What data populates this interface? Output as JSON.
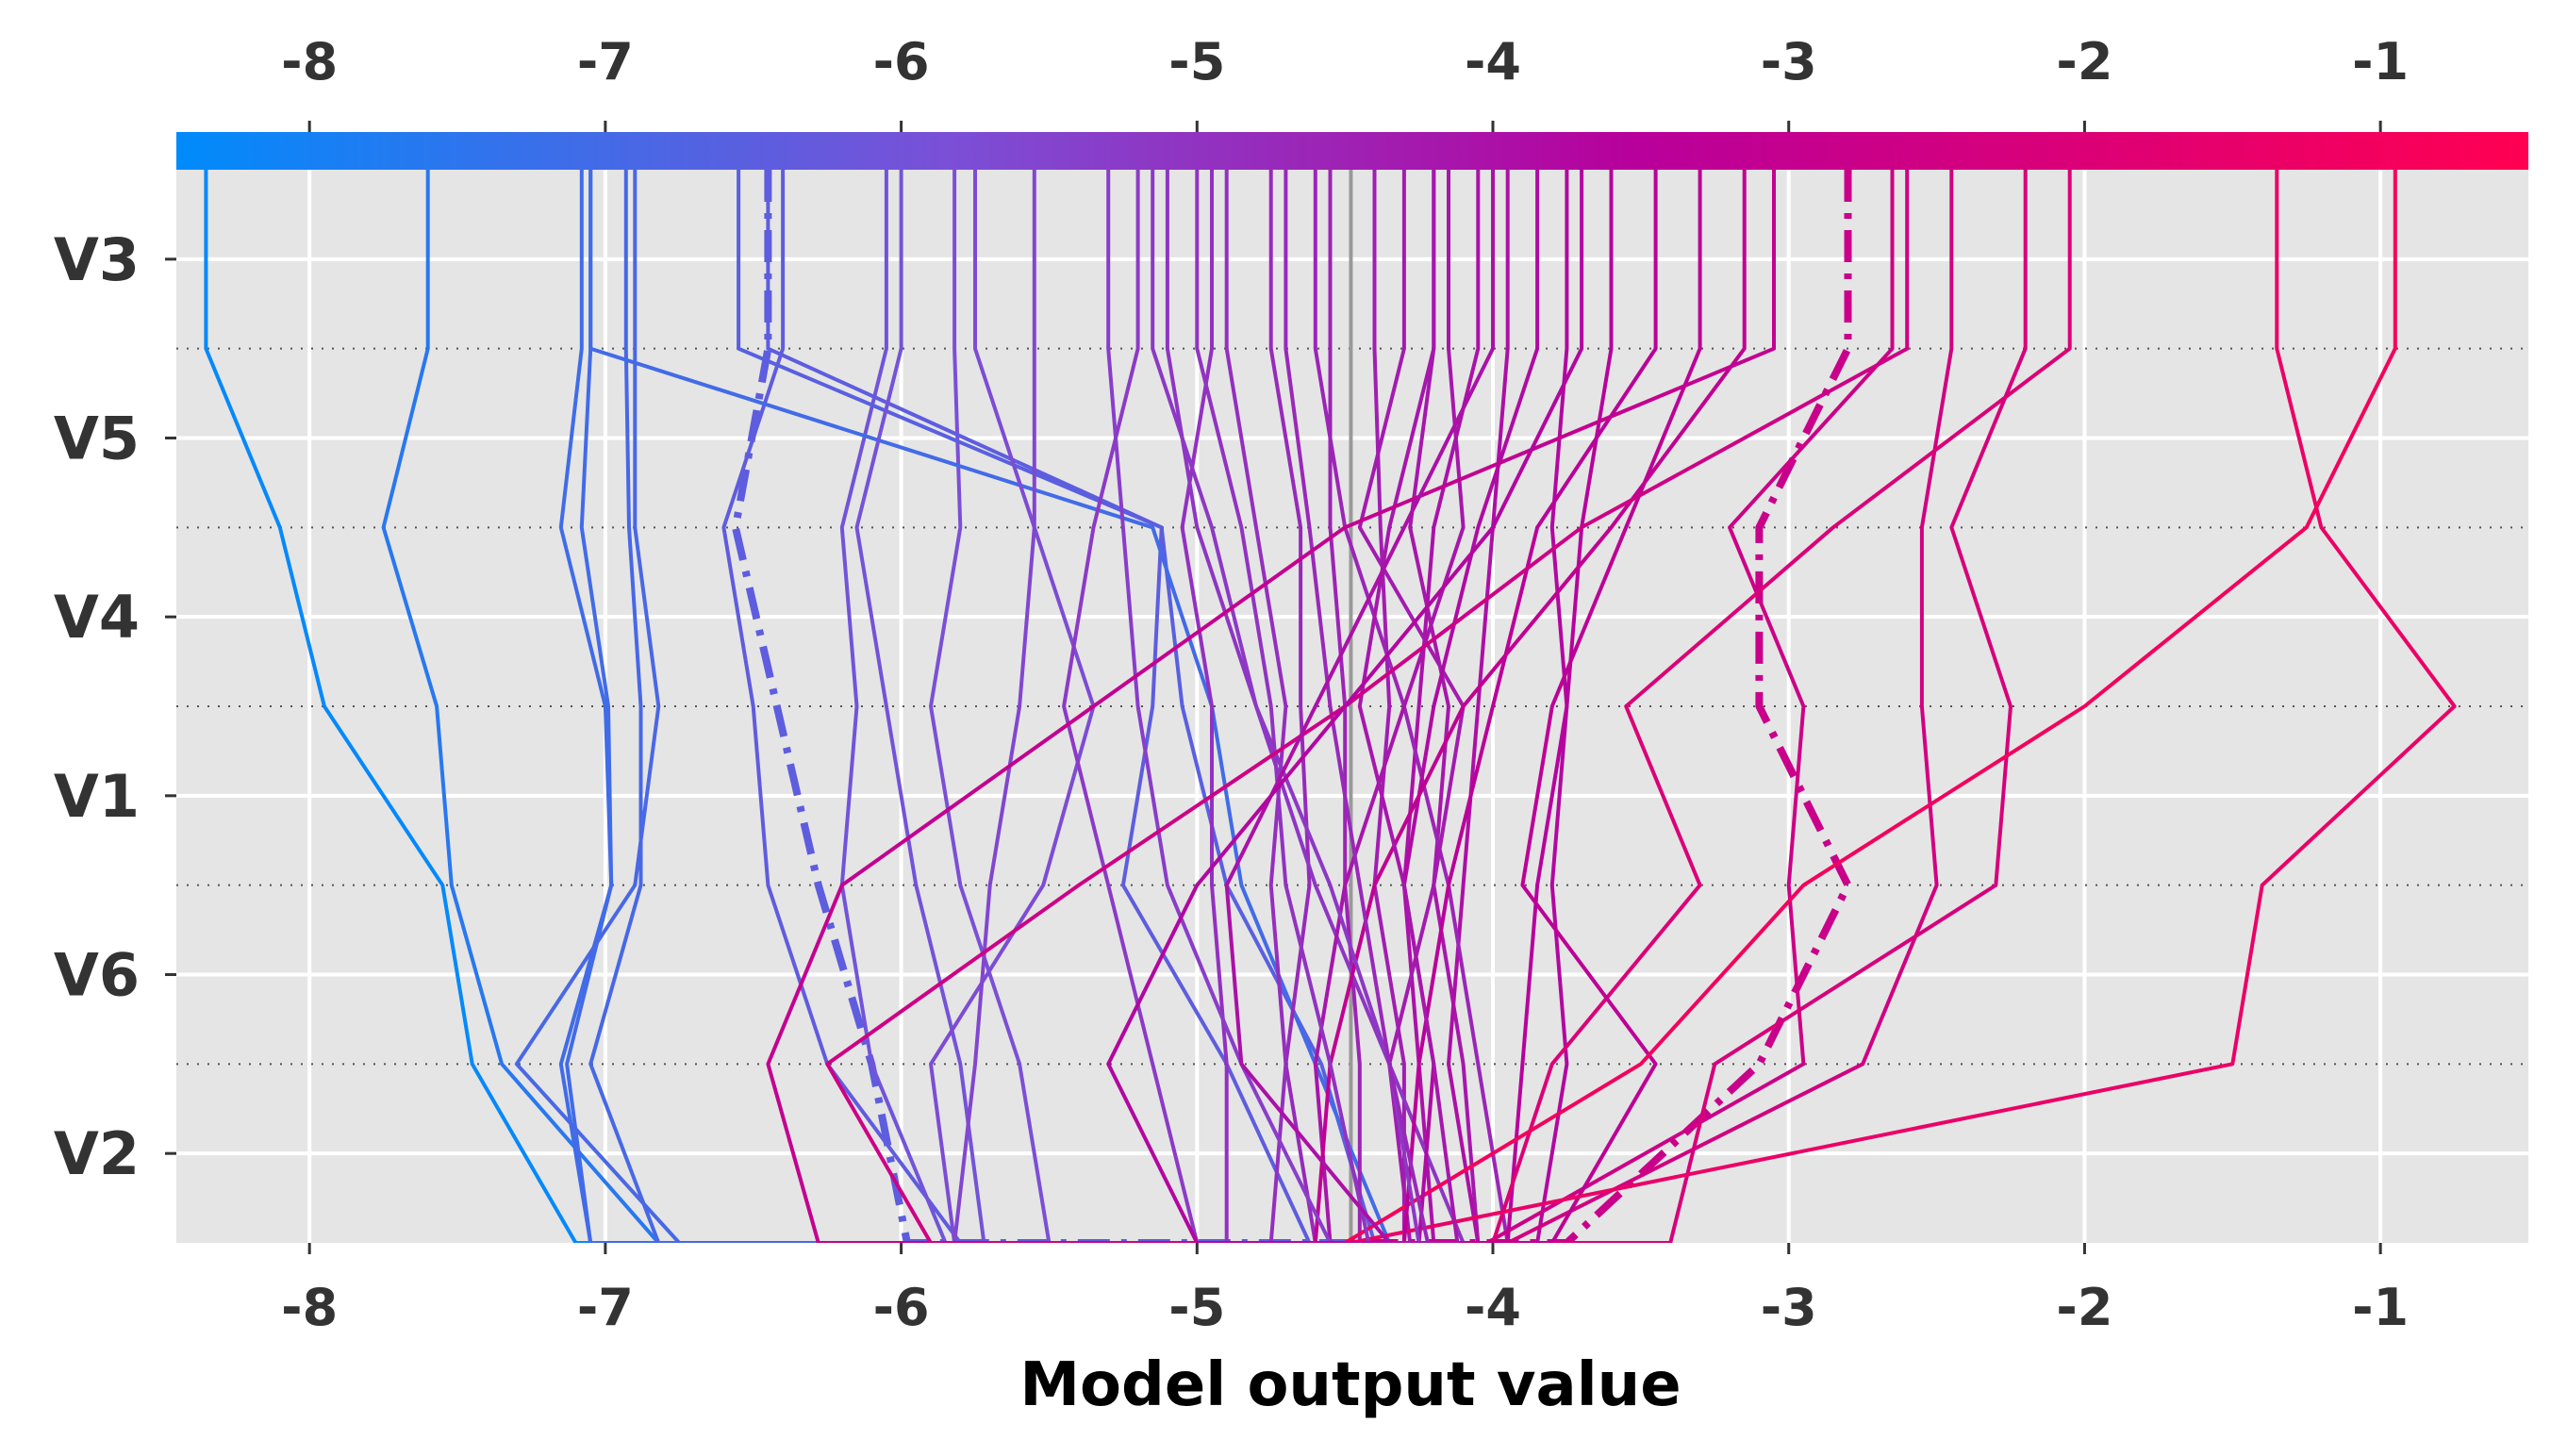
{
  "chart_data": {
    "type": "line",
    "subtype": "decision-plot",
    "title": "",
    "xlabel": "Model output value",
    "ylabel": "",
    "xlim": [
      -8.45,
      -0.5
    ],
    "x_ticks": [
      "-8",
      "-7",
      "-6",
      "-5",
      "-4",
      "-3",
      "-2",
      "-1"
    ],
    "x_tick_values": [
      -8,
      -7,
      -6,
      -5,
      -4,
      -3,
      -2,
      -1
    ],
    "features": [
      "V3",
      "V5",
      "V4",
      "V1",
      "V6",
      "V2"
    ],
    "base_value": -4.48,
    "grid": true,
    "plot_background": "#e5e5e5",
    "colormap": [
      "#008bfb",
      "#7b4fd6",
      "#b8009b",
      "#ff0052"
    ],
    "colorbar_position": "top",
    "series": [
      {
        "top": -8.35,
        "values": [
          -8.35,
          -8.1,
          -7.95,
          -7.55,
          -7.45,
          -7.1,
          -4.48
        ]
      },
      {
        "top": -7.6,
        "values": [
          -7.6,
          -7.75,
          -7.57,
          -7.52,
          -7.35,
          -6.82,
          -4.48
        ]
      },
      {
        "top": -7.08,
        "values": [
          -7.08,
          -7.15,
          -7.0,
          -6.98,
          -7.15,
          -7.05,
          -4.48
        ]
      },
      {
        "top": -7.05,
        "values": [
          -7.05,
          -7.08,
          -6.99,
          -6.98,
          -7.13,
          -7.05,
          -4.48
        ]
      },
      {
        "top": -6.93,
        "values": [
          -6.93,
          -6.92,
          -6.88,
          -6.88,
          -7.05,
          -6.82,
          -4.48
        ]
      },
      {
        "top": -6.9,
        "values": [
          -6.9,
          -6.9,
          -6.82,
          -6.9,
          -7.3,
          -6.75,
          -4.48
        ]
      },
      {
        "top": -6.4,
        "values": [
          -6.4,
          -6.6,
          -6.5,
          -6.45,
          -6.25,
          -5.8,
          -4.48
        ]
      },
      {
        "top": -6.45,
        "values": [
          -6.45,
          -6.56,
          -6.42,
          -6.28,
          -6.1,
          -5.98,
          -4.48
        ],
        "dashed": true
      },
      {
        "top": -6.05,
        "values": [
          -6.05,
          -6.2,
          -6.15,
          -6.2,
          -6.1,
          -5.85,
          -4.48
        ]
      },
      {
        "top": -5.82,
        "values": [
          -5.82,
          -5.8,
          -5.9,
          -5.8,
          -5.6,
          -5.5,
          -4.48
        ]
      },
      {
        "top": -6.55,
        "values": [
          -6.55,
          -5.12,
          -5.05,
          -4.9,
          -4.58,
          -4.4,
          -4.48
        ]
      },
      {
        "top": -6.45,
        "values": [
          -6.45,
          -5.12,
          -5.15,
          -5.25,
          -4.9,
          -4.62,
          -4.48
        ]
      },
      {
        "top": -7.05,
        "values": [
          -7.05,
          -5.15,
          -4.95,
          -4.85,
          -4.6,
          -4.35,
          -4.48
        ]
      },
      {
        "top": -6.0,
        "values": [
          -6.0,
          -6.15,
          -6.05,
          -5.95,
          -5.8,
          -5.72,
          -4.48
        ]
      },
      {
        "top": -5.75,
        "values": [
          -5.75,
          -5.55,
          -5.35,
          -5.52,
          -5.9,
          -5.82,
          -4.48
        ]
      },
      {
        "top": -5.55,
        "values": [
          -5.55,
          -5.55,
          -5.6,
          -5.7,
          -5.75,
          -5.82,
          -4.48
        ]
      },
      {
        "top": -5.2,
        "values": [
          -5.2,
          -5.35,
          -5.45,
          -5.3,
          -5.15,
          -5.0,
          -4.48
        ]
      },
      {
        "top": -4.95,
        "values": [
          -4.95,
          -5.05,
          -4.95,
          -4.95,
          -4.9,
          -4.9,
          -4.48
        ]
      },
      {
        "top": -4.75,
        "values": [
          -4.75,
          -4.65,
          -4.65,
          -4.62,
          -4.7,
          -4.6,
          -4.48
        ]
      },
      {
        "top": -4.55,
        "values": [
          -4.55,
          -4.55,
          -4.5,
          -4.5,
          -4.45,
          -4.45,
          -4.48
        ]
      },
      {
        "top": -4.4,
        "values": [
          -4.4,
          -4.38,
          -4.35,
          -4.4,
          -4.3,
          -4.3,
          -4.48
        ]
      },
      {
        "top": -4.2,
        "values": [
          -4.2,
          -4.28,
          -4.15,
          -4.2,
          -4.1,
          -4.05,
          -4.48
        ]
      },
      {
        "top": -4.05,
        "values": [
          -4.05,
          -4.2,
          -4.25,
          -4.3,
          -4.25,
          -4.2,
          -4.48
        ]
      },
      {
        "top": -3.95,
        "values": [
          -3.95,
          -4.0,
          -4.05,
          -4.1,
          -4.15,
          -4.05,
          -4.48
        ]
      },
      {
        "top": -4.9,
        "values": [
          -4.9,
          -4.8,
          -4.7,
          -4.75,
          -4.7,
          -4.75,
          -4.48
        ]
      },
      {
        "top": -5.1,
        "values": [
          -5.1,
          -5.0,
          -4.8,
          -4.6,
          -4.35,
          -4.1,
          -4.48
        ]
      },
      {
        "top": -4.6,
        "values": [
          -4.6,
          -4.5,
          -4.3,
          -4.15,
          -4.05,
          -3.95,
          -4.48
        ]
      },
      {
        "top": -3.75,
        "values": [
          -3.75,
          -3.8,
          -3.75,
          -3.8,
          -3.75,
          -3.85,
          -4.48
        ]
      },
      {
        "top": -3.6,
        "values": [
          -3.6,
          -3.7,
          -3.75,
          -3.85,
          -3.9,
          -3.95,
          -4.48
        ]
      },
      {
        "top": -2.8,
        "values": [
          -2.8,
          -3.1,
          -3.1,
          -2.8,
          -3.1,
          -3.75,
          -4.48
        ],
        "dashed": true
      },
      {
        "top": -2.65,
        "values": [
          -2.65,
          -3.2,
          -2.95,
          -3.0,
          -2.95,
          -4.02,
          -4.48
        ]
      },
      {
        "top": -2.45,
        "values": [
          -2.45,
          -2.55,
          -2.55,
          -2.5,
          -2.75,
          -3.95,
          -4.48
        ]
      },
      {
        "top": -2.2,
        "values": [
          -2.2,
          -2.45,
          -2.25,
          -2.3,
          -3.25,
          -3.4,
          -4.48
        ]
      },
      {
        "top": -2.05,
        "values": [
          -2.05,
          -2.85,
          -3.55,
          -3.3,
          -3.8,
          -4.0,
          -4.48
        ]
      },
      {
        "top": -3.3,
        "values": [
          -3.3,
          -3.55,
          -3.8,
          -3.9,
          -3.45,
          -3.8,
          -4.48
        ]
      },
      {
        "top": -4.3,
        "values": [
          -4.3,
          -4.45,
          -4.1,
          -4.2,
          -4.35,
          -4.28,
          -4.48
        ]
      },
      {
        "top": -1.35,
        "values": [
          -1.35,
          -1.2,
          -0.75,
          -1.4,
          -1.5,
          -4.48,
          -4.48
        ]
      },
      {
        "top": -0.95,
        "values": [
          -0.95,
          -1.25,
          -2.0,
          -2.95,
          -3.5,
          -4.5,
          -4.48
        ]
      },
      {
        "top": -4.15,
        "values": [
          -4.15,
          -4.1,
          -4.3,
          -4.5,
          -4.6,
          -4.55,
          -4.48
        ]
      },
      {
        "top": -3.85,
        "values": [
          -3.85,
          -4.05,
          -4.2,
          -4.3,
          -4.2,
          -4.25,
          -4.48
        ]
      },
      {
        "top": -3.45,
        "values": [
          -3.45,
          -3.85,
          -4.0,
          -4.15,
          -4.25,
          -4.3,
          -4.48
        ]
      },
      {
        "top": -3.15,
        "values": [
          -3.15,
          -3.6,
          -4.1,
          -4.4,
          -4.55,
          -4.6,
          -4.48
        ]
      },
      {
        "top": -5.15,
        "values": [
          -5.15,
          -4.95,
          -4.8,
          -4.55,
          -4.35,
          -4.25,
          -4.48
        ]
      },
      {
        "top": -4.7,
        "values": [
          -4.7,
          -4.62,
          -4.55,
          -4.45,
          -4.35,
          -4.22,
          -4.48
        ]
      },
      {
        "top": -5.3,
        "values": [
          -5.3,
          -5.25,
          -5.2,
          -5.1,
          -4.85,
          -4.55,
          -4.48
        ]
      },
      {
        "top": -5.0,
        "values": [
          -5.0,
          -4.85,
          -4.75,
          -4.7,
          -4.55,
          -4.42,
          -4.48
        ]
      },
      {
        "top": -4.2,
        "values": [
          -4.2,
          -4.35,
          -4.45,
          -4.3,
          -4.2,
          -4.12,
          -4.48
        ]
      },
      {
        "top": -3.05,
        "values": [
          -3.05,
          -4.5,
          -5.35,
          -6.2,
          -6.45,
          -6.28,
          -4.48
        ]
      },
      {
        "top": -2.6,
        "values": [
          -2.6,
          -3.7,
          -4.5,
          -5.4,
          -6.25,
          -5.9,
          -4.48
        ]
      },
      {
        "top": -4.0,
        "values": [
          -4.0,
          -4.3,
          -4.6,
          -4.9,
          -4.85,
          -4.35,
          -4.48
        ]
      },
      {
        "top": -3.7,
        "values": [
          -3.7,
          -4.0,
          -4.5,
          -5.0,
          -5.3,
          -5.0,
          -4.48
        ]
      }
    ]
  }
}
